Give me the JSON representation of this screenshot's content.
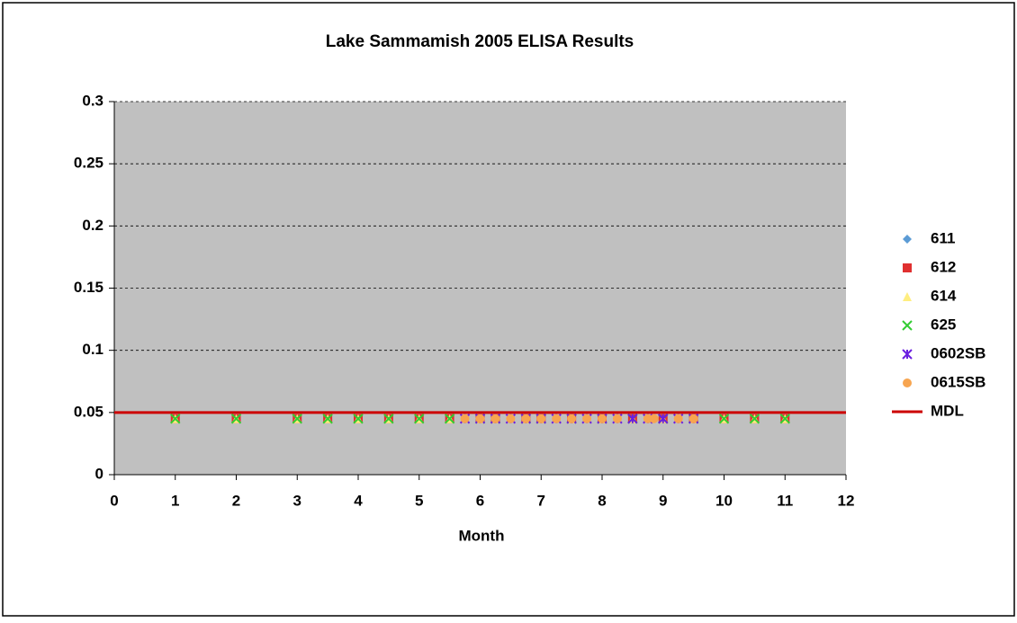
{
  "chart_data": {
    "type": "scatter",
    "title": "Lake Sammamish 2005 ELISA Results",
    "x_label": "Month",
    "xlim": [
      0,
      12
    ],
    "xticks": [
      0,
      1,
      2,
      3,
      4,
      5,
      6,
      7,
      8,
      9,
      10,
      11,
      12
    ],
    "ylim": [
      0,
      0.3
    ],
    "yticks": [
      0,
      0.05,
      0.1,
      0.15,
      0.2,
      0.25,
      0.3
    ],
    "grid": true,
    "legend": "right",
    "series": [
      {
        "name": "611",
        "color": "#5b9bd5",
        "marker": "diamond",
        "x": [
          1,
          2,
          3,
          3.5,
          4,
          4.5,
          5,
          5.5,
          6,
          6.25,
          6.75,
          7,
          7.5,
          8,
          8.5,
          9,
          9.5,
          10,
          10.5,
          11
        ],
        "values": [
          0.045,
          0.045,
          0.045,
          0.045,
          0.045,
          0.045,
          0.045,
          0.045,
          0.045,
          0.045,
          0.045,
          0.045,
          0.045,
          0.045,
          0.045,
          0.045,
          0.045,
          0.045,
          0.045,
          0.045
        ]
      },
      {
        "name": "612",
        "color": "#e03030",
        "marker": "square",
        "x": [
          1,
          2,
          3,
          3.5,
          4,
          4.5,
          5,
          5.5,
          6,
          6.25,
          6.75,
          7,
          7.5,
          8,
          8.5,
          9,
          9.5,
          10,
          10.5,
          11
        ],
        "values": [
          0.045,
          0.045,
          0.045,
          0.045,
          0.045,
          0.045,
          0.045,
          0.045,
          0.045,
          0.045,
          0.045,
          0.045,
          0.045,
          0.045,
          0.045,
          0.045,
          0.045,
          0.045,
          0.045,
          0.045
        ]
      },
      {
        "name": "614",
        "color": "#ffee80",
        "marker": "triangle",
        "x": [
          1,
          2,
          3,
          3.5,
          4,
          4.5,
          5,
          5.5,
          6,
          6.25,
          6.75,
          7,
          7.5,
          8,
          8.5,
          9,
          9.5,
          10,
          10.5,
          11
        ],
        "values": [
          0.045,
          0.045,
          0.045,
          0.045,
          0.045,
          0.045,
          0.045,
          0.045,
          0.045,
          0.045,
          0.045,
          0.045,
          0.045,
          0.045,
          0.045,
          0.045,
          0.045,
          0.045,
          0.045,
          0.045
        ]
      },
      {
        "name": "625",
        "color": "#33cc33",
        "marker": "x",
        "x": [
          1,
          2,
          3,
          3.5,
          4,
          4.5,
          5,
          5.5,
          6,
          6.25,
          6.75,
          7,
          7.5,
          8,
          8.5,
          9,
          9.5,
          10,
          10.5,
          11
        ],
        "values": [
          0.045,
          0.045,
          0.045,
          0.045,
          0.045,
          0.045,
          0.045,
          0.045,
          0.045,
          0.045,
          0.045,
          0.045,
          0.045,
          0.045,
          0.045,
          0.045,
          0.045,
          0.045,
          0.045,
          0.045
        ]
      },
      {
        "name": "0602SB",
        "color": "#6a1ee0",
        "marker": "star",
        "x": [
          5.75,
          6,
          6.25,
          6.5,
          6.75,
          7,
          7.25,
          7.5,
          7.75,
          8,
          8.25,
          8.5,
          8.75,
          9,
          9.25,
          9.5
        ],
        "values": [
          0.045,
          0.045,
          0.045,
          0.045,
          0.045,
          0.045,
          0.045,
          0.045,
          0.045,
          0.045,
          0.045,
          0.045,
          0.045,
          0.045,
          0.045,
          0.045
        ]
      },
      {
        "name": "0615SB",
        "color": "#f7a550",
        "marker": "circle",
        "x": [
          5.75,
          6,
          6.25,
          6.5,
          6.75,
          7,
          7.25,
          7.5,
          7.75,
          8,
          8.25,
          8.75,
          8.85,
          9.25,
          9.5
        ],
        "values": [
          0.045,
          0.045,
          0.045,
          0.045,
          0.045,
          0.045,
          0.045,
          0.045,
          0.045,
          0.045,
          0.045,
          0.045,
          0.045,
          0.045,
          0.045
        ]
      },
      {
        "name": "MDL",
        "color": "#cc0000",
        "marker": "line",
        "x": [
          0,
          12
        ],
        "values": [
          0.05,
          0.05
        ]
      }
    ]
  }
}
